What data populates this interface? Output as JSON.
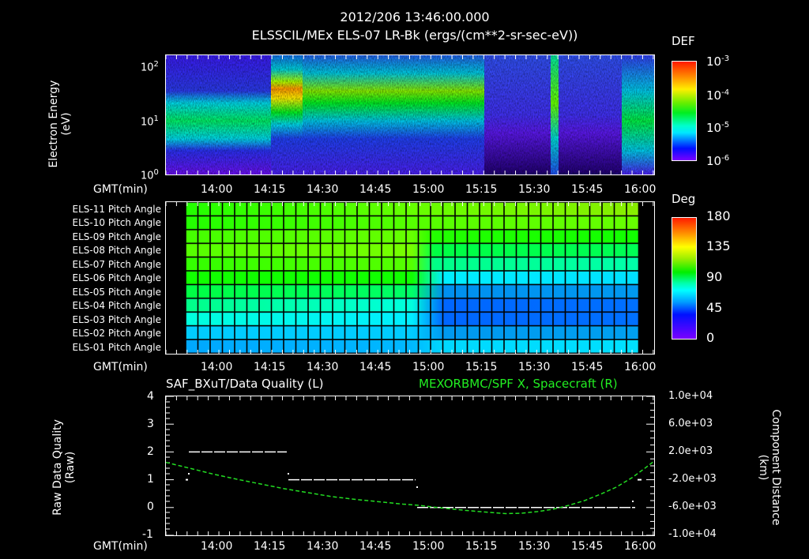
{
  "header": {
    "timestamp": "2012/206 13:46:00.000",
    "title": "ELSSCIL/MEx ELS-07 LR-Bk  (ergs/(cm**2-sr-sec-eV))"
  },
  "time_axis": {
    "label": "GMT(min)",
    "ticks": [
      "14:00",
      "14:15",
      "14:30",
      "14:45",
      "15:00",
      "15:15",
      "15:30",
      "15:45",
      "16:00"
    ]
  },
  "panel1": {
    "ylabel_line1": "Electron Energy",
    "ylabel_line2": "(eV)",
    "yticks": [
      {
        "base": "10",
        "exp": "2"
      },
      {
        "base": "10",
        "exp": "1"
      },
      {
        "base": "10",
        "exp": "0"
      }
    ],
    "colorbar": {
      "title": "DEF",
      "ticks": [
        {
          "base": "10",
          "exp": "-3"
        },
        {
          "base": "10",
          "exp": "-4"
        },
        {
          "base": "10",
          "exp": "-5"
        },
        {
          "base": "10",
          "exp": "-6"
        }
      ]
    }
  },
  "panel2": {
    "rows": [
      "ELS-11 Pitch Angle",
      "ELS-10 Pitch Angle",
      "ELS-09 Pitch Angle",
      "ELS-08 Pitch Angle",
      "ELS-07 Pitch Angle",
      "ELS-06 Pitch Angle",
      "ELS-05 Pitch Angle",
      "ELS-04 Pitch Angle",
      "ELS-03 Pitch Angle",
      "ELS-02 Pitch Angle",
      "ELS-01 Pitch Angle"
    ],
    "colorbar": {
      "title": "Deg",
      "ticks": [
        "180",
        "135",
        "90",
        "45",
        "0"
      ]
    }
  },
  "panel3": {
    "left_title": "SAF_BXuT/Data Quality (L)",
    "right_title": "MEXORBMC/SPF X, Spacecraft (R)",
    "ylabel_left_line1": "Raw Data Quality",
    "ylabel_left_line2": "(Raw)",
    "ylabel_right_line1": "Component Distance",
    "ylabel_right_line2": "(km)",
    "yticks_left": [
      "4",
      "3",
      "2",
      "1",
      "0",
      "-1"
    ],
    "yticks_right": [
      "1.0e+04",
      "6.0e+03",
      "2.0e+03",
      "-2.0e+03",
      "-6.0e+03",
      "-1.0e+04"
    ]
  },
  "colors": {
    "background": "#000000",
    "axes": "#ffffff",
    "spacecraft_x": "#22dd22",
    "data_quality": "#ffffff"
  },
  "chart_data": [
    {
      "type": "heatmap",
      "title": "ELSSCIL/MEx ELS-07 LR-Bk (ergs/(cm**2-sr-sec-eV))",
      "subtitle": "2012/206 13:46:00.000",
      "xlabel": "GMT(min)",
      "ylabel": "Electron Energy (eV)",
      "yscale": "log",
      "ylim": [
        1,
        150
      ],
      "xlim": [
        "13:46",
        "16:04"
      ],
      "x_ticks": [
        "14:00",
        "14:15",
        "14:30",
        "14:45",
        "15:00",
        "15:15",
        "15:30",
        "15:45",
        "16:00"
      ],
      "colorbar": {
        "label": "DEF",
        "scale": "log",
        "range": [
          1e-06,
          0.001
        ],
        "ticks": [
          "1e-3",
          "1e-4",
          "1e-5",
          "1e-6"
        ]
      },
      "features": [
        {
          "time": [
            "13:46",
            "14:16"
          ],
          "peak_energy_eV": [
            7,
            25
          ],
          "level": "~2e-5 (cyan-green)"
        },
        {
          "time": [
            "14:16",
            "14:35"
          ],
          "peak_energy_eV": [
            30,
            80
          ],
          "level": "~3e-4 (yellow-orange)"
        },
        {
          "time": [
            "14:35",
            "15:17"
          ],
          "peak_energy_eV": [
            15,
            60
          ],
          "level": "~1e-4 (green-yellow), declining"
        },
        {
          "time": [
            "15:17",
            "15:36"
          ],
          "peak_energy_eV": null,
          "level": "~1e-6 (background)"
        },
        {
          "time": [
            "15:36",
            "15:38"
          ],
          "peak_energy_eV": [
            5,
            150
          ],
          "level": "~1e-4 (narrow burst)"
        },
        {
          "time": [
            "15:38",
            "15:56"
          ],
          "peak_energy_eV": null,
          "level": "~1e-6 (background)"
        },
        {
          "time": [
            "15:56",
            "16:04"
          ],
          "peak_energy_eV": [
            5,
            30
          ],
          "level": "~3e-5 (cyan-green)"
        }
      ]
    },
    {
      "type": "heatmap",
      "title": "Pitch Angle",
      "xlabel": "GMT(min)",
      "ylabel": "",
      "categories": [
        "ELS-11",
        "ELS-10",
        "ELS-09",
        "ELS-08",
        "ELS-07",
        "ELS-06",
        "ELS-05",
        "ELS-04",
        "ELS-03",
        "ELS-02",
        "ELS-01"
      ],
      "xlim": [
        "13:52",
        "16:00"
      ],
      "colorbar": {
        "label": "Deg",
        "range": [
          0,
          180
        ],
        "ticks": [
          180,
          135,
          90,
          45,
          0
        ]
      },
      "series": [
        {
          "name": "before_15:00",
          "values": [
            100,
            105,
            110,
            115,
            110,
            100,
            95,
            85,
            70,
            60,
            55
          ]
        },
        {
          "name": "after_15:05",
          "values": [
            115,
            120,
            105,
            95,
            80,
            65,
            45,
            35,
            38,
            45,
            55
          ]
        }
      ]
    },
    {
      "type": "line",
      "title": "SAF_BXuT/Data Quality (L) | MEXORBMC/SPF X, Spacecraft (R)",
      "xlabel": "GMT(min)",
      "ylabel": "Raw Data Quality (Raw)",
      "ylabel_right": "Component Distance (km)",
      "ylim": [
        -1,
        4
      ],
      "ylim_right": [
        -10000,
        10000
      ],
      "x_ticks": [
        "14:00",
        "14:15",
        "14:30",
        "14:45",
        "15:00",
        "15:15",
        "15:30",
        "15:45",
        "16:00"
      ],
      "series": [
        {
          "name": "Data Quality (L)",
          "axis": "left",
          "x": [
            "13:52",
            "13:53",
            "14:20",
            "14:21",
            "14:22",
            "14:58",
            "14:59",
            "15:00",
            "16:00",
            "16:01"
          ],
          "values": [
            1,
            2,
            2,
            1.2,
            1,
            1,
            0.7,
            0,
            0,
            1
          ]
        },
        {
          "name": "MEXORBMC/SPF X, Spacecraft (R)",
          "axis": "right",
          "x": [
            "13:46",
            "14:00",
            "14:15",
            "14:30",
            "14:45",
            "15:00",
            "15:15",
            "15:20",
            "15:30",
            "15:45",
            "16:00",
            "16:04"
          ],
          "values": [
            2200,
            800,
            -800,
            -2200,
            -3500,
            -4600,
            -4900,
            -4900,
            -4600,
            -2800,
            700,
            1800
          ]
        }
      ]
    }
  ]
}
